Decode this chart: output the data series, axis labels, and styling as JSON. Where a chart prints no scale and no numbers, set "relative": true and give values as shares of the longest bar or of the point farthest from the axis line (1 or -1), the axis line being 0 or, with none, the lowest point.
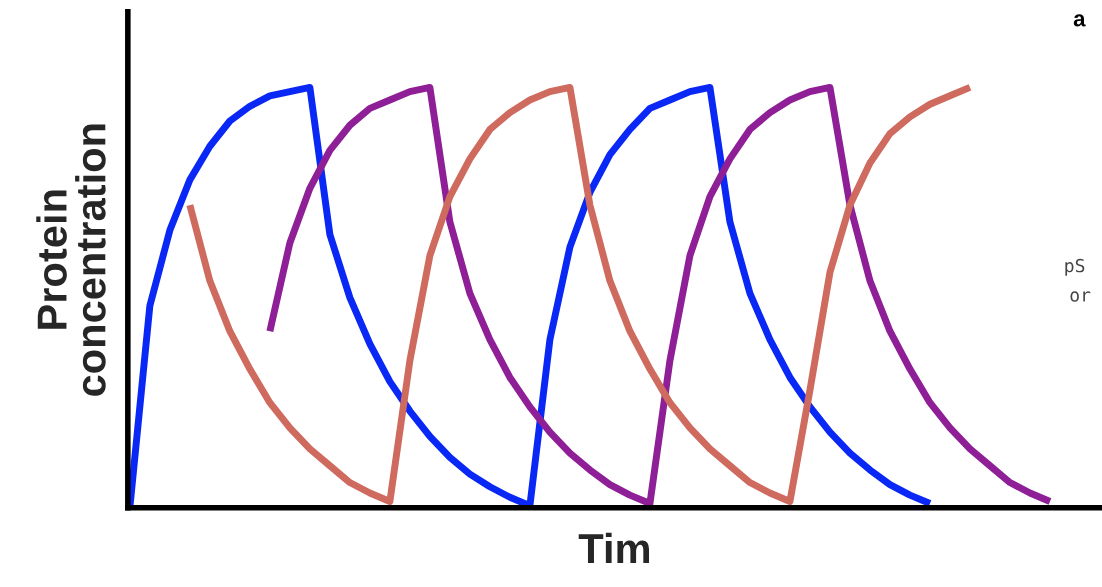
{
  "chart_data": {
    "type": "line",
    "relative": true,
    "tick_labels": false,
    "line_style": "solid",
    "marker": "none",
    "xlabel": "Tim",
    "ylabel": "Protein\nconcentration",
    "annotations": [
      "a",
      "pS",
      "or"
    ],
    "categories": [
      null,
      null,
      null,
      null,
      null,
      null,
      null,
      null,
      null,
      null,
      null,
      null,
      null,
      null,
      null,
      null,
      null,
      null,
      null,
      null,
      null,
      null,
      null,
      null,
      null,
      null,
      null,
      null,
      null,
      null,
      null,
      null,
      null,
      null,
      null,
      null,
      null,
      null,
      null,
      null,
      null,
      null,
      null,
      null,
      null,
      null,
      null,
      null,
      null
    ],
    "series": [
      {
        "color": "#0a28f5",
        "values": [
          0,
          0.48,
          0.66,
          0.78,
          0.86,
          0.92,
          0.955,
          0.98,
          0.99,
          1,
          0.65,
          0.5,
          0.39,
          0.3,
          0.23,
          0.17,
          0.12,
          0.08,
          0.05,
          0.025,
          0.005,
          0.4,
          0.62,
          0.75,
          0.84,
          0.9,
          0.95,
          0.97,
          0.99,
          1,
          0.68,
          0.51,
          0.4,
          0.31,
          0.24,
          0.18,
          0.13,
          0.09,
          0.055,
          0.03,
          0.01,
          null,
          null,
          null,
          null,
          null,
          null,
          null,
          null
        ]
      },
      {
        "color": "#8e1f96",
        "values": [
          null,
          null,
          null,
          null,
          null,
          null,
          null,
          0.42,
          0.63,
          0.76,
          0.85,
          0.91,
          0.95,
          0.97,
          0.99,
          1,
          0.68,
          0.51,
          0.4,
          0.31,
          0.24,
          0.18,
          0.13,
          0.09,
          0.055,
          0.03,
          0.01,
          0.35,
          0.6,
          0.74,
          0.83,
          0.9,
          0.94,
          0.97,
          0.99,
          1,
          0.72,
          0.54,
          0.42,
          0.33,
          0.25,
          0.19,
          0.14,
          0.1,
          0.06,
          0.035,
          0.015,
          null,
          null
        ]
      },
      {
        "color": "#cf6a5f",
        "values": [
          null,
          null,
          null,
          0.72,
          0.54,
          0.42,
          0.33,
          0.25,
          0.19,
          0.14,
          0.1,
          0.06,
          0.035,
          0.015,
          0.35,
          0.6,
          0.74,
          0.83,
          0.9,
          0.94,
          0.97,
          0.99,
          1,
          0.72,
          0.54,
          0.42,
          0.33,
          0.25,
          0.19,
          0.14,
          0.1,
          0.06,
          0.035,
          0.015,
          0.28,
          0.56,
          0.72,
          0.82,
          0.89,
          0.93,
          0.96,
          0.98,
          1,
          null,
          null,
          null,
          null,
          null,
          null
        ]
      }
    ]
  }
}
